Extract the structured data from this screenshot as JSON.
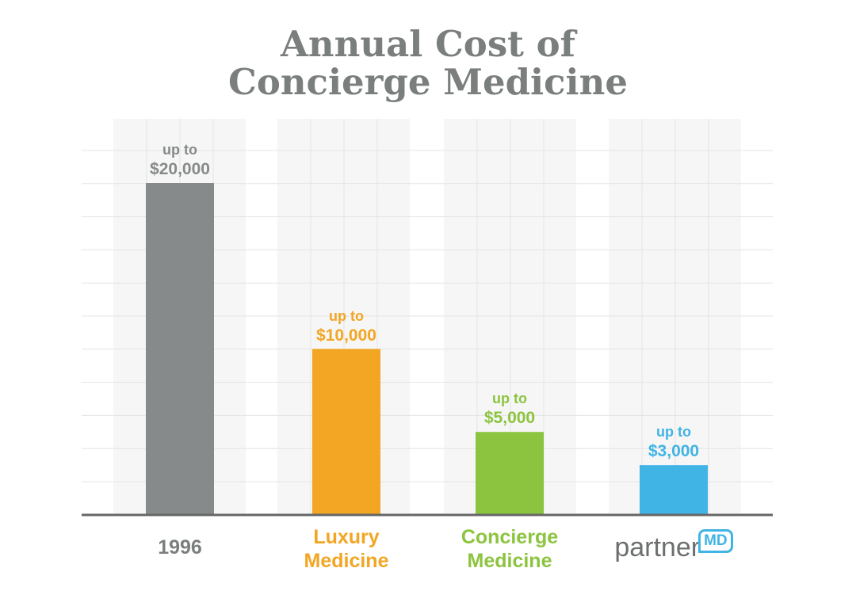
{
  "chart_data": {
    "type": "bar",
    "title": "Annual Cost of Concierge Medicine",
    "categories": [
      "1996",
      "Luxury Medicine",
      "Concierge Medicine",
      "partner"
    ],
    "logo_badge": "MD",
    "values": [
      20000,
      10000,
      5000,
      3000
    ],
    "value_labels": [
      [
        "up to",
        "$20,000"
      ],
      [
        "up to",
        "$10,000"
      ],
      [
        "up to",
        "$5,000"
      ],
      [
        "up to",
        "$3,000"
      ]
    ],
    "colors": [
      "#878a8a",
      "#f2a623",
      "#8cc43f",
      "#40b4e5"
    ],
    "ylim": [
      0,
      20000
    ]
  }
}
